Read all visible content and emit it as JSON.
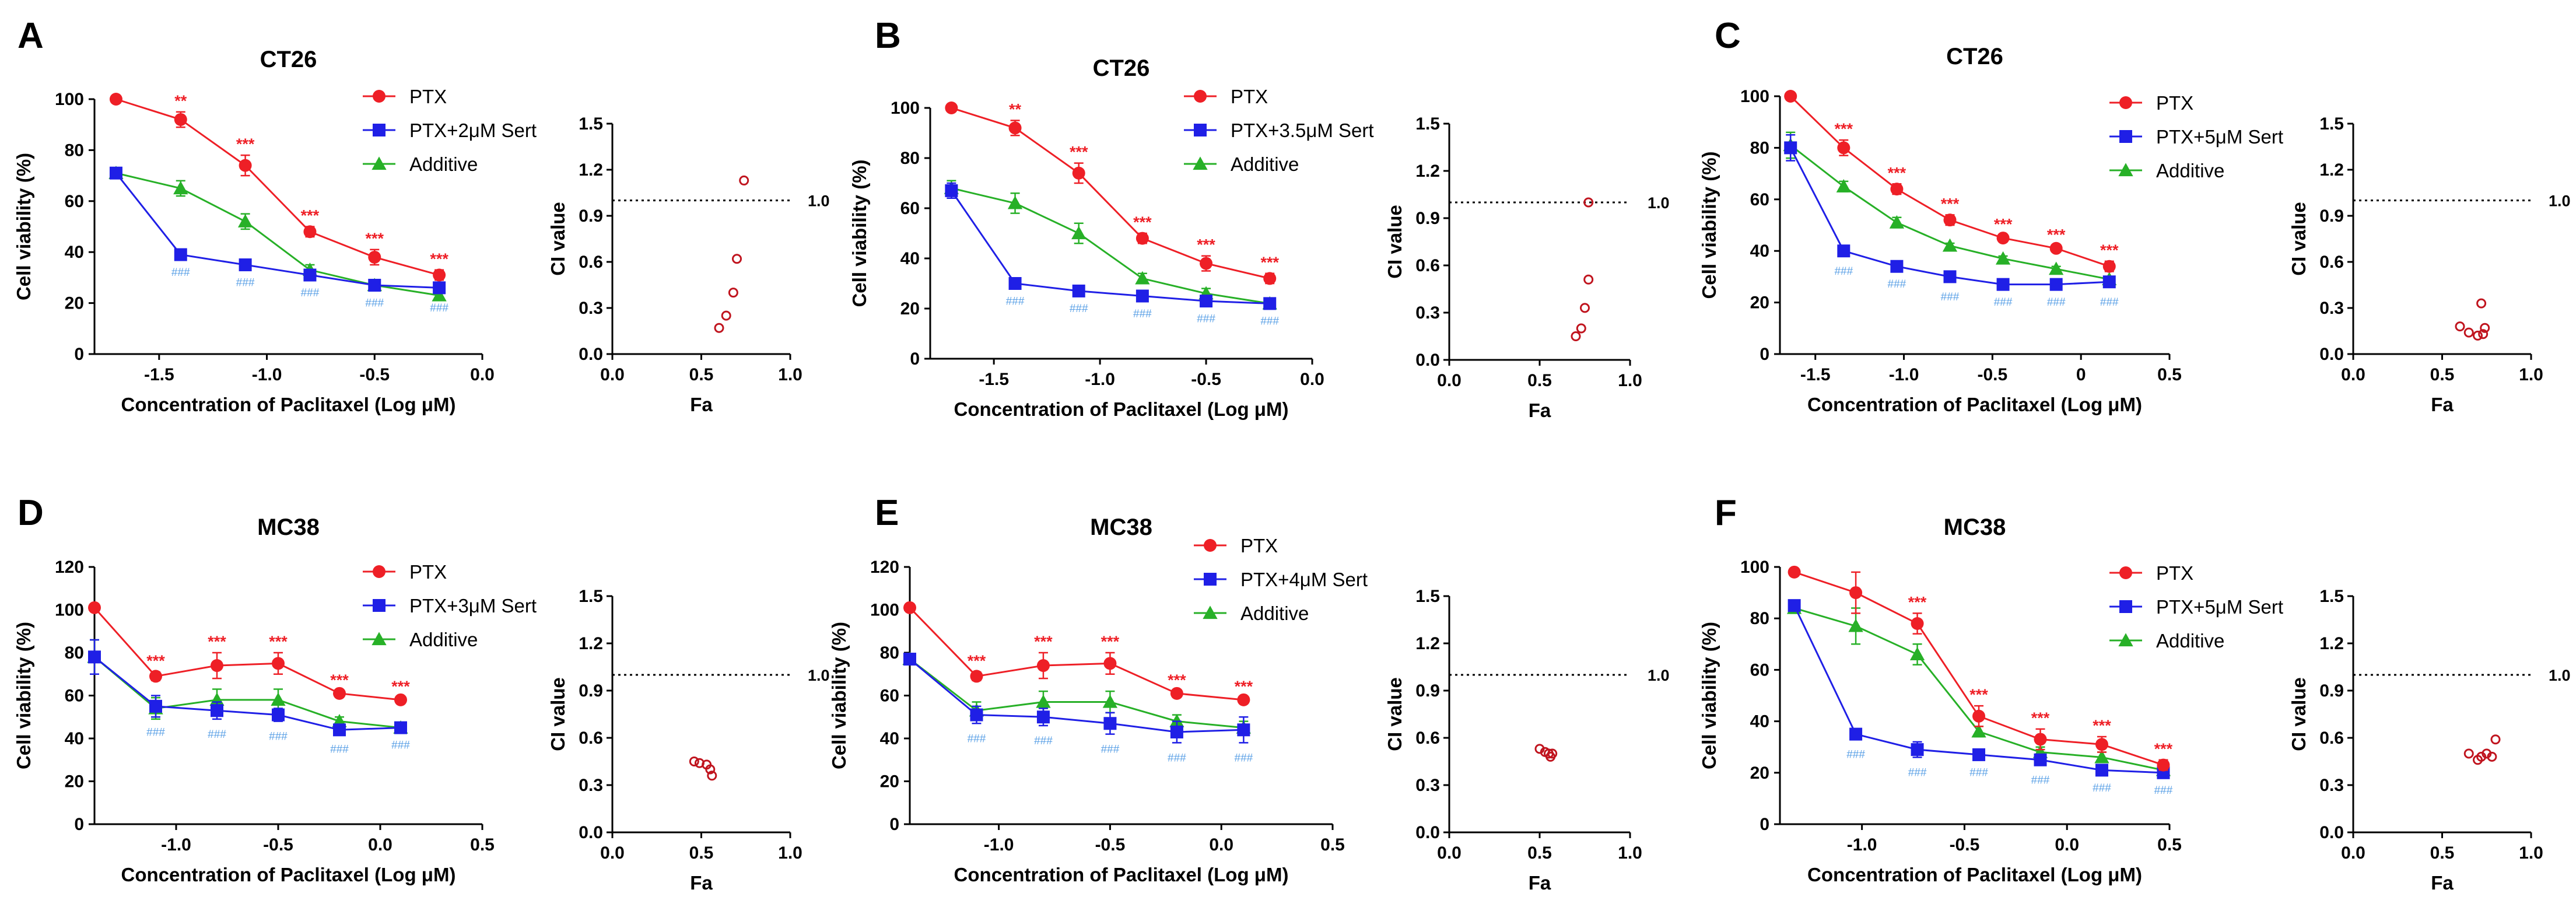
{
  "colors": {
    "ptx": "#ee1f26",
    "ptx_sert": "#1f1fe6",
    "additive": "#27b027",
    "stars": "#ee1f26",
    "hashes": "#5aa0e6",
    "ci_points": "#c0141e",
    "axes": "#000000"
  },
  "chart_data": [
    {
      "panel": "A",
      "type": "line",
      "title": "CT26",
      "xlabel": "Concentration of Paclitaxel (Log μM)",
      "ylabel": "Cell viability (%)",
      "xlim": [
        -1.8,
        0.0
      ],
      "ylim": [
        0,
        100
      ],
      "xticks": [
        -1.5,
        -1.0,
        -0.5,
        0.0
      ],
      "xtick_labels": [
        "-1.5",
        "-1.0",
        "-0.5",
        "0.0"
      ],
      "yticks": [
        0,
        20,
        40,
        60,
        80,
        100
      ],
      "ytick_labels": [
        "0",
        "20",
        "40",
        "60",
        "80",
        "100"
      ],
      "x": [
        -1.7,
        -1.4,
        -1.1,
        -0.8,
        -0.5,
        -0.2
      ],
      "series": [
        {
          "name": "PTX",
          "key": "ptx",
          "values": [
            100,
            92,
            74,
            48,
            38,
            31
          ],
          "errors": [
            1,
            3,
            4,
            2,
            3,
            2
          ]
        },
        {
          "name": "PTX+2μM Sert",
          "key": "ptx_sert",
          "values": [
            71,
            39,
            35,
            31,
            27,
            26
          ],
          "errors": [
            2,
            1,
            1,
            1,
            1,
            2
          ]
        },
        {
          "name": "Additive",
          "key": "additive",
          "values": [
            71,
            65,
            52,
            33,
            27,
            23
          ],
          "errors": [
            2,
            3,
            3,
            2,
            2,
            2
          ]
        }
      ],
      "stars": [
        "",
        "**",
        "***",
        "***",
        "***",
        "***"
      ],
      "hashes": [
        "",
        "###",
        "###",
        "###",
        "###",
        "###"
      ],
      "ci": {
        "xlabel": "Fa",
        "ylabel": "CI value",
        "xlim": [
          0,
          1
        ],
        "ylim": [
          0,
          1.5
        ],
        "xtick_labels": [
          "0.0",
          "0.5",
          "1.0"
        ],
        "ytick_labels": [
          "0.0",
          "0.3",
          "0.6",
          "0.9",
          "1.2",
          "1.5"
        ],
        "reference": 1.0,
        "reference_label": "1.0",
        "fa": [
          0.6,
          0.64,
          0.68,
          0.7,
          0.74
        ],
        "ci": [
          0.17,
          0.25,
          0.4,
          0.62,
          1.13
        ]
      }
    },
    {
      "panel": "B",
      "type": "line",
      "title": "CT26",
      "xlabel": "Concentration of Paclitaxel (Log μM)",
      "ylabel": "Cell viability (%)",
      "xlim": [
        -1.8,
        0.0
      ],
      "ylim": [
        0,
        100
      ],
      "xticks": [
        -1.5,
        -1.0,
        -0.5,
        0.0
      ],
      "xtick_labels": [
        "-1.5",
        "-1.0",
        "-0.5",
        "0.0"
      ],
      "yticks": [
        0,
        20,
        40,
        60,
        80,
        100
      ],
      "ytick_labels": [
        "0",
        "20",
        "40",
        "60",
        "80",
        "100"
      ],
      "x": [
        -1.7,
        -1.4,
        -1.1,
        -0.8,
        -0.5,
        -0.2
      ],
      "series": [
        {
          "name": "PTX",
          "key": "ptx",
          "values": [
            100,
            92,
            74,
            48,
            38,
            32
          ],
          "errors": [
            1,
            3,
            4,
            2,
            3,
            2
          ]
        },
        {
          "name": "PTX+3.5μM Sert",
          "key": "ptx_sert",
          "values": [
            67,
            30,
            27,
            25,
            23,
            22
          ],
          "errors": [
            3,
            1,
            1,
            1,
            1,
            1
          ]
        },
        {
          "name": "Additive",
          "key": "additive",
          "values": [
            68,
            62,
            50,
            32,
            26,
            22
          ],
          "errors": [
            3,
            4,
            4,
            2,
            2,
            2
          ]
        }
      ],
      "stars": [
        "",
        "**",
        "***",
        "***",
        "***",
        "***"
      ],
      "hashes": [
        "",
        "###",
        "###",
        "###",
        "###",
        "###"
      ],
      "ci": {
        "xlabel": "Fa",
        "ylabel": "CI value",
        "xlim": [
          0,
          1
        ],
        "ylim": [
          0,
          1.5
        ],
        "xtick_labels": [
          "0.0",
          "0.5",
          "1.0"
        ],
        "ytick_labels": [
          "0.0",
          "0.3",
          "0.6",
          "0.9",
          "1.2",
          "1.5"
        ],
        "reference": 1.0,
        "reference_label": "1.0",
        "fa": [
          0.7,
          0.73,
          0.75,
          0.77,
          0.77
        ],
        "ci": [
          0.15,
          0.2,
          0.33,
          0.51,
          1.0
        ]
      }
    },
    {
      "panel": "C",
      "type": "line",
      "title": "CT26",
      "xlabel": "Concentration of Paclitaxel (Log μM)",
      "ylabel": "Cell viability (%)",
      "xlim": [
        -1.7,
        0.5
      ],
      "ylim": [
        0,
        100
      ],
      "xticks": [
        -1.5,
        -1.0,
        -0.5,
        0.0,
        0.5
      ],
      "xtick_labels": [
        "-1.5",
        "-1.0",
        "-0.5",
        "0",
        "0.5"
      ],
      "yticks": [
        0,
        20,
        40,
        60,
        80,
        100
      ],
      "ytick_labels": [
        "0",
        "20",
        "40",
        "60",
        "80",
        "100"
      ],
      "x": [
        -1.64,
        -1.34,
        -1.04,
        -0.74,
        -0.44,
        -0.14,
        0.16
      ],
      "series": [
        {
          "name": "PTX",
          "key": "ptx",
          "values": [
            100,
            80,
            64,
            52,
            45,
            41,
            34
          ],
          "errors": [
            1,
            3,
            2,
            2,
            1,
            1,
            2
          ]
        },
        {
          "name": "PTX+5μM Sert",
          "key": "ptx_sert",
          "values": [
            80,
            40,
            34,
            30,
            27,
            27,
            28
          ],
          "errors": [
            5,
            2,
            1,
            2,
            1,
            1,
            2
          ]
        },
        {
          "name": "Additive",
          "key": "additive",
          "values": [
            81,
            65,
            51,
            42,
            37,
            33,
            29
          ],
          "errors": [
            5,
            2,
            2,
            1,
            1,
            1,
            1
          ]
        }
      ],
      "stars": [
        "",
        "***",
        "***",
        "***",
        "***",
        "***",
        "***"
      ],
      "hashes": [
        "",
        "###",
        "###",
        "###",
        "###",
        "###",
        "###"
      ],
      "ci": {
        "xlabel": "Fa",
        "ylabel": "CI value",
        "xlim": [
          0,
          1
        ],
        "ylim": [
          0,
          1.5
        ],
        "xtick_labels": [
          "0.0",
          "0.5",
          "1.0"
        ],
        "ytick_labels": [
          "0.0",
          "0.3",
          "0.6",
          "0.9",
          "1.2",
          "1.5"
        ],
        "reference": 1.0,
        "reference_label": "1.0",
        "fa": [
          0.6,
          0.65,
          0.7,
          0.73,
          0.74,
          0.72
        ],
        "ci": [
          0.18,
          0.14,
          0.12,
          0.13,
          0.17,
          0.33
        ]
      }
    },
    {
      "panel": "D",
      "type": "line",
      "title": "MC38",
      "xlabel": "Concentration of Paclitaxel (Log μM)",
      "ylabel": "Cell viability (%)",
      "xlim": [
        -1.4,
        0.5
      ],
      "ylim": [
        0,
        120
      ],
      "xticks": [
        -1.0,
        -0.5,
        0.0,
        0.5
      ],
      "xtick_labels": [
        "-1.0",
        "-0.5",
        "0.0",
        "0.5"
      ],
      "yticks": [
        0,
        20,
        40,
        60,
        80,
        100,
        120
      ],
      "ytick_labels": [
        "0",
        "20",
        "40",
        "60",
        "80",
        "100",
        "120"
      ],
      "x": [
        -1.4,
        -1.1,
        -0.8,
        -0.5,
        -0.2,
        0.1
      ],
      "series": [
        {
          "name": "PTX",
          "key": "ptx",
          "values": [
            101,
            69,
            74,
            75,
            61,
            58
          ],
          "errors": [
            1,
            2,
            6,
            5,
            1,
            1
          ]
        },
        {
          "name": "PTX+3μM Sert",
          "key": "ptx_sert",
          "values": [
            78,
            55,
            53,
            51,
            44,
            45
          ],
          "errors": [
            8,
            5,
            4,
            3,
            2,
            1
          ]
        },
        {
          "name": "Additive",
          "key": "additive",
          "values": [
            78,
            54,
            58,
            58,
            48,
            45
          ],
          "errors": [
            8,
            5,
            5,
            5,
            2,
            2
          ]
        }
      ],
      "stars": [
        "",
        "***",
        "***",
        "***",
        "***",
        "***"
      ],
      "hashes": [
        "",
        "###",
        "###",
        "###",
        "###",
        "###"
      ],
      "ci": {
        "xlabel": "Fa",
        "ylabel": "CI value",
        "xlim": [
          0,
          1
        ],
        "ylim": [
          0,
          1.5
        ],
        "xtick_labels": [
          "0.0",
          "0.5",
          "1.0"
        ],
        "ytick_labels": [
          "0.0",
          "0.3",
          "0.6",
          "0.9",
          "1.2",
          "1.5"
        ],
        "reference": 1.0,
        "reference_label": "1.0",
        "fa": [
          0.46,
          0.49,
          0.53,
          0.55,
          0.56
        ],
        "ci": [
          0.45,
          0.44,
          0.43,
          0.4,
          0.36
        ]
      }
    },
    {
      "panel": "E",
      "type": "line",
      "title": "MC38",
      "xlabel": "Concentration of Paclitaxel (Log μM)",
      "ylabel": "Cell viability (%)",
      "xlim": [
        -1.4,
        0.5
      ],
      "ylim": [
        0,
        120
      ],
      "xticks": [
        -1.0,
        -0.5,
        0.0,
        0.5
      ],
      "xtick_labels": [
        "-1.0",
        "-0.5",
        "0.0",
        "0.5"
      ],
      "yticks": [
        0,
        20,
        40,
        60,
        80,
        100,
        120
      ],
      "ytick_labels": [
        "0",
        "20",
        "40",
        "60",
        "80",
        "100",
        "120"
      ],
      "x": [
        -1.4,
        -1.1,
        -0.8,
        -0.5,
        -0.2,
        0.1
      ],
      "series": [
        {
          "name": "PTX",
          "key": "ptx",
          "values": [
            101,
            69,
            74,
            75,
            61,
            58
          ],
          "errors": [
            1,
            2,
            6,
            5,
            1,
            1
          ]
        },
        {
          "name": "PTX+4μM Sert",
          "key": "ptx_sert",
          "values": [
            77,
            51,
            50,
            47,
            43,
            44
          ],
          "errors": [
            2,
            4,
            4,
            5,
            5,
            6
          ]
        },
        {
          "name": "Additive",
          "key": "additive",
          "values": [
            77,
            53,
            57,
            57,
            48,
            45
          ],
          "errors": [
            2,
            4,
            5,
            5,
            3,
            3
          ]
        }
      ],
      "stars": [
        "",
        "***",
        "***",
        "***",
        "***",
        "***"
      ],
      "hashes": [
        "",
        "###",
        "###",
        "###",
        "###",
        "###"
      ],
      "ci": {
        "xlabel": "Fa",
        "ylabel": "CI value",
        "xlim": [
          0,
          1
        ],
        "ylim": [
          0,
          1.5
        ],
        "xtick_labels": [
          "0.0",
          "0.5",
          "1.0"
        ],
        "ytick_labels": [
          "0.0",
          "0.3",
          "0.6",
          "0.9",
          "1.2",
          "1.5"
        ],
        "reference": 1.0,
        "reference_label": "1.0",
        "fa": [
          0.5,
          0.53,
          0.55,
          0.56,
          0.57
        ],
        "ci": [
          0.53,
          0.51,
          0.5,
          0.48,
          0.5
        ]
      }
    },
    {
      "panel": "F",
      "type": "line",
      "title": "MC38",
      "xlabel": "Concentration of Paclitaxel (Log μM)",
      "ylabel": "Cell viability (%)",
      "xlim": [
        -1.4,
        0.5
      ],
      "ylim": [
        0,
        100
      ],
      "xticks": [
        -1.0,
        -0.5,
        0.0,
        0.5
      ],
      "xtick_labels": [
        "-1.0",
        "-0.5",
        "0.0",
        "0.5"
      ],
      "yticks": [
        0,
        20,
        40,
        60,
        80,
        100
      ],
      "ytick_labels": [
        "0",
        "20",
        "40",
        "60",
        "80",
        "100"
      ],
      "x": [
        -1.33,
        -1.03,
        -0.73,
        -0.43,
        -0.13,
        0.17,
        0.47
      ],
      "series": [
        {
          "name": "PTX",
          "key": "ptx",
          "values": [
            98,
            90,
            78,
            42,
            33,
            31,
            23
          ],
          "errors": [
            1,
            8,
            4,
            4,
            4,
            3,
            2
          ]
        },
        {
          "name": "PTX+5μM Sert",
          "key": "ptx_sert",
          "values": [
            85,
            35,
            29,
            27,
            25,
            21,
            20
          ],
          "errors": [
            2,
            2,
            3,
            1,
            2,
            1,
            1
          ]
        },
        {
          "name": "Additive",
          "key": "additive",
          "values": [
            84,
            77,
            66,
            36,
            28,
            26,
            21
          ],
          "errors": [
            2,
            7,
            4,
            2,
            2,
            2,
            1
          ]
        }
      ],
      "stars": [
        "",
        "",
        "***",
        "***",
        "***",
        "***",
        "***"
      ],
      "hashes": [
        "",
        "###",
        "###",
        "###",
        "###",
        "###",
        "###"
      ],
      "ci": {
        "xlabel": "Fa",
        "ylabel": "CI value",
        "xlim": [
          0,
          1
        ],
        "ylim": [
          0,
          1.5
        ],
        "xtick_labels": [
          "0.0",
          "0.5",
          "1.0"
        ],
        "ytick_labels": [
          "0.0",
          "0.3",
          "0.6",
          "0.9",
          "1.2",
          "1.5"
        ],
        "reference": 1.0,
        "reference_label": "1.0",
        "fa": [
          0.65,
          0.7,
          0.72,
          0.75,
          0.78,
          0.8
        ],
        "ci": [
          0.5,
          0.46,
          0.48,
          0.5,
          0.48,
          0.59
        ]
      }
    }
  ]
}
